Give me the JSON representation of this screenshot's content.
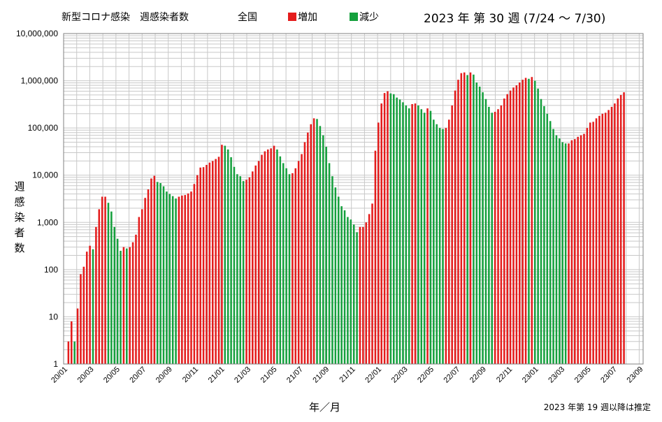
{
  "header": {
    "subject": "新型コロナ感染　週感染者数",
    "region": "全国",
    "legend_increase": "増加",
    "legend_decrease": "減少",
    "period": "2023 年 第 30 週 (7/24 ～ 7/30)"
  },
  "colors": {
    "increase": "#e41c1c",
    "decrease": "#15a03d",
    "grid": "#c8c8c8",
    "frame": "#808080"
  },
  "footnote": "2023 年第 19 週以降は推定",
  "chart_data": {
    "type": "bar",
    "yscale": "log",
    "ylim": [
      1,
      10000000
    ],
    "yticks": [
      1,
      10,
      100,
      1000,
      10000,
      100000,
      1000000,
      10000000
    ],
    "ytick_labels": [
      "1",
      "10",
      "100",
      "1,000",
      "10,000",
      "100,000",
      "1,000,000",
      "10,000,000"
    ],
    "xticks": [
      "20/01",
      "20/03",
      "20/05",
      "20/07",
      "20/09",
      "20/11",
      "21/01",
      "21/03",
      "21/05",
      "21/07",
      "21/09",
      "21/11",
      "22/01",
      "22/03",
      "22/05",
      "22/07",
      "22/09",
      "22/11",
      "23/01",
      "23/03",
      "23/05",
      "23/07",
      "23/09"
    ],
    "xlabel": "年／月",
    "ylabel": "週感染者数",
    "grid": true,
    "series": [
      {
        "name": "週感染者数",
        "values": [
          3,
          8,
          3,
          15,
          80,
          115,
          240,
          320,
          270,
          800,
          1900,
          3500,
          3500,
          2600,
          1700,
          800,
          450,
          250,
          300,
          280,
          300,
          380,
          550,
          1300,
          1900,
          3300,
          5000,
          8500,
          9700,
          7200,
          6800,
          5800,
          4500,
          4000,
          3600,
          3200,
          3500,
          3700,
          3800,
          4100,
          4500,
          6500,
          10000,
          14500,
          14800,
          16500,
          18500,
          20000,
          22000,
          24500,
          44000,
          42000,
          35000,
          24000,
          15000,
          10500,
          9500,
          7500,
          8000,
          9000,
          12000,
          16000,
          20000,
          27000,
          32000,
          35000,
          37000,
          42000,
          35000,
          25000,
          18000,
          14000,
          10500,
          11000,
          14000,
          20000,
          28000,
          50000,
          80000,
          120000,
          160000,
          155000,
          110000,
          70000,
          40000,
          18000,
          9500,
          5500,
          3500,
          2200,
          1800,
          1300,
          1150,
          900,
          620,
          800,
          800,
          1000,
          1500,
          2500,
          33000,
          130000,
          330000,
          550000,
          600000,
          540000,
          520000,
          440000,
          400000,
          350000,
          300000,
          260000,
          320000,
          330000,
          300000,
          250000,
          210000,
          260000,
          230000,
          150000,
          120000,
          100000,
          95000,
          100000,
          150000,
          300000,
          620000,
          1050000,
          1450000,
          1500000,
          1320000,
          1500000,
          1350000,
          920000,
          750000,
          570000,
          410000,
          280000,
          210000,
          220000,
          250000,
          300000,
          420000,
          520000,
          620000,
          720000,
          800000,
          920000,
          1050000,
          1150000,
          1100000,
          1200000,
          1000000,
          680000,
          410000,
          290000,
          200000,
          140000,
          95000,
          70000,
          60000,
          50000,
          47000,
          47000,
          55000,
          58000,
          65000,
          70000,
          75000,
          100000,
          130000,
          135000,
          160000,
          180000,
          200000,
          210000,
          240000,
          280000,
          330000,
          420000,
          500000,
          570000
        ]
      }
    ]
  }
}
